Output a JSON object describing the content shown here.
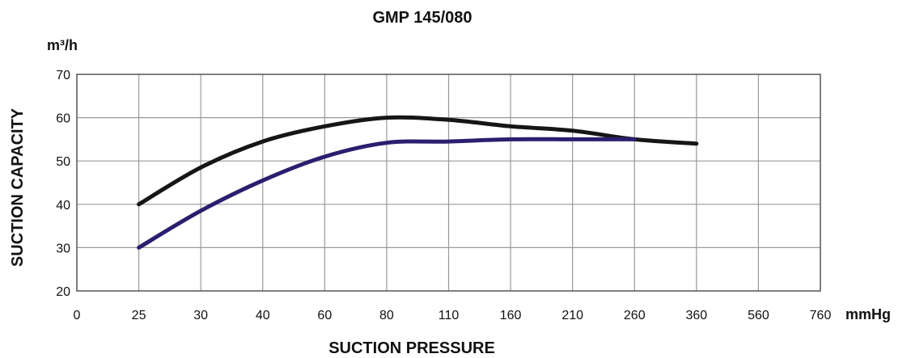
{
  "chart_data": {
    "type": "line",
    "title": "GMP 145/080",
    "unit_label": "m³/h",
    "ylabel": "SUCTION CAPACITY",
    "xlabel": "SUCTION PRESSURE",
    "xunit": "mmHg",
    "categories": [
      "0",
      "25",
      "30",
      "40",
      "60",
      "80",
      "110",
      "160",
      "210",
      "260",
      "360",
      "560",
      "760"
    ],
    "y_ticks": [
      20,
      30,
      40,
      50,
      60,
      70
    ],
    "ylim": [
      20,
      70
    ],
    "grid": true,
    "series": [
      {
        "color": "#161616",
        "points": [
          {
            "x": "25",
            "y": 40
          },
          {
            "x": "30",
            "y": 48.5
          },
          {
            "x": "40",
            "y": 54.5
          },
          {
            "x": "60",
            "y": 58
          },
          {
            "x": "80",
            "y": 60
          },
          {
            "x": "110",
            "y": 59.5
          },
          {
            "x": "160",
            "y": 58
          },
          {
            "x": "210",
            "y": 57
          },
          {
            "x": "260",
            "y": 55
          },
          {
            "x": "360",
            "y": 54
          }
        ]
      },
      {
        "color": "#2a1f6e",
        "points": [
          {
            "x": "25",
            "y": 30
          },
          {
            "x": "30",
            "y": 38.5
          },
          {
            "x": "40",
            "y": 45.5
          },
          {
            "x": "60",
            "y": 51
          },
          {
            "x": "80",
            "y": 54.2
          },
          {
            "x": "110",
            "y": 54.5
          },
          {
            "x": "160",
            "y": 55
          },
          {
            "x": "210",
            "y": 55
          },
          {
            "x": "260",
            "y": 55
          }
        ]
      }
    ]
  }
}
